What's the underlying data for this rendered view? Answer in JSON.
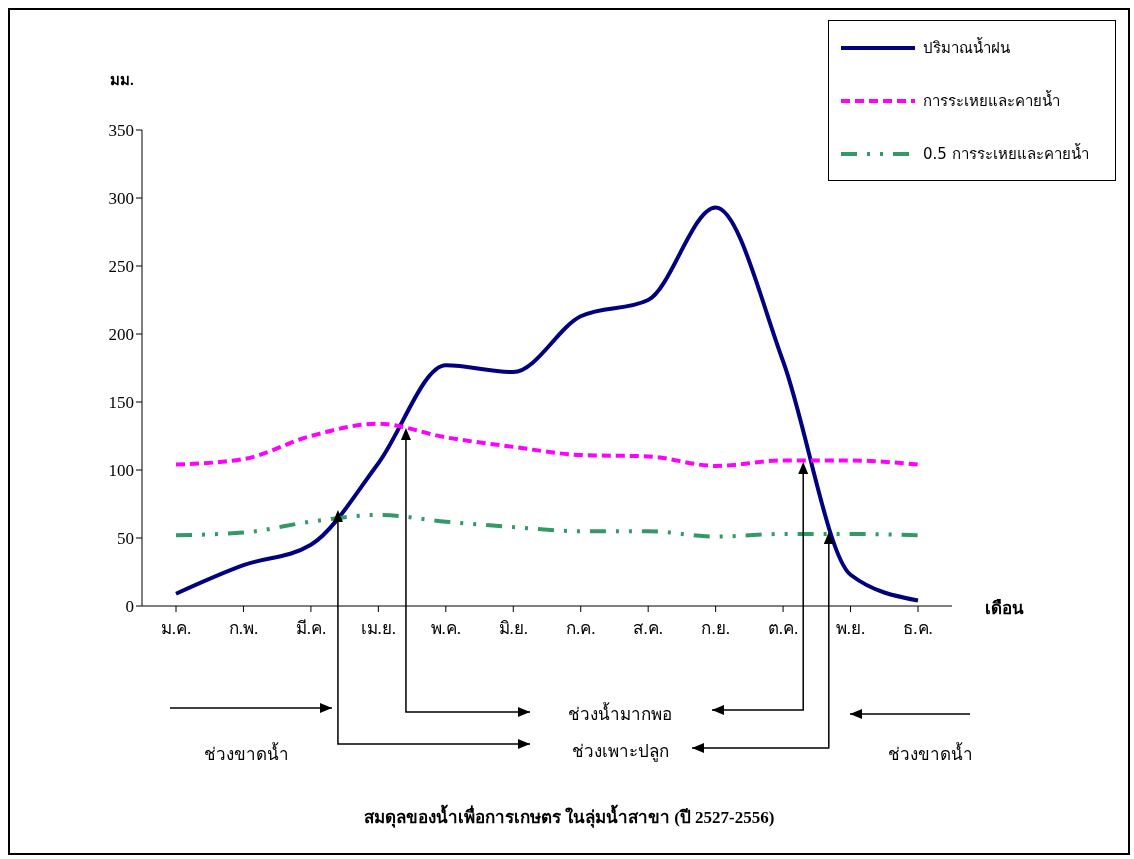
{
  "chart_data": {
    "type": "line",
    "title": "สมดุลของน้ำเพื่อการเกษตร ในลุ่มน้ำสาขา (ปี 2527-2556)",
    "ylabel": "มม.",
    "xlabel": "เดือน",
    "categories": [
      "ม.ค.",
      "ก.พ.",
      "มี.ค.",
      "เม.ย.",
      "พ.ค.",
      "มิ.ย.",
      "ก.ค.",
      "ส.ค.",
      "ก.ย.",
      "ต.ค.",
      "พ.ย.",
      "ธ.ค."
    ],
    "series": [
      {
        "name": "ปริมาณน้ำฝน",
        "color": "#000080",
        "line_style": "solid",
        "values": [
          9,
          30,
          45,
          105,
          177,
          172,
          213,
          225,
          293,
          180,
          23,
          4
        ]
      },
      {
        "name": "การระเหยและคายน้ำ",
        "color": "#ff00ff",
        "line_style": "dashed",
        "values": [
          104,
          108,
          125,
          134,
          124,
          117,
          111,
          110,
          103,
          107,
          107,
          104
        ]
      },
      {
        "name": "0.5 การระเหยและคายน้ำ",
        "color": "#339966",
        "line_style": "dotted",
        "values": [
          52,
          54,
          62,
          67,
          62,
          58,
          55,
          55,
          51,
          53,
          53,
          52
        ]
      }
    ],
    "ylim": [
      0,
      350
    ],
    "yticks": [
      0,
      50,
      100,
      150,
      200,
      250,
      300,
      350
    ],
    "grid": false,
    "legend": "top right",
    "marker": "none",
    "annotations": [
      "ช่วงขาดน้ำ",
      "ช่วงน้ำมากพอ",
      "ช่วงเพาะปลูก",
      "ช่วงขาดน้ำ"
    ]
  }
}
